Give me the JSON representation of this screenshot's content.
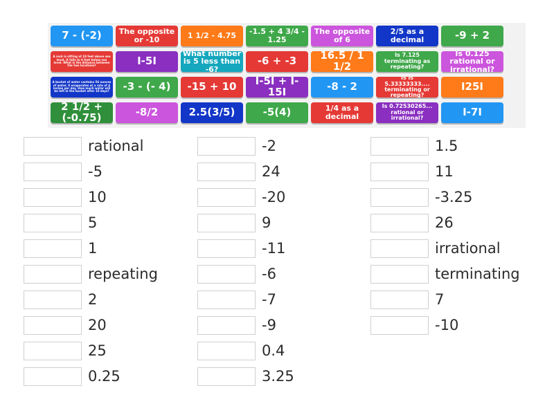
{
  "tiles": [
    {
      "text": "7 - (-2)",
      "color": "blue",
      "size": "big"
    },
    {
      "text": "The opposite or -10",
      "color": "red",
      "size": "mid"
    },
    {
      "text": "1 1/2 - 4.75",
      "color": "orange",
      "size": "mid"
    },
    {
      "text": "-1.5 + 4 3/4 - 1.25",
      "color": "green",
      "size": "mid"
    },
    {
      "text": "The opposite of 6",
      "color": "violet",
      "size": "mid"
    },
    {
      "text": "2/5 as a decimal",
      "color": "navy",
      "size": "mid"
    },
    {
      "text": "-9 + 2",
      "color": "green",
      "size": "big"
    },
    {
      "text": "A rock is sitting at 18 feet above sea level. It falls to 6 feet below sea level. What is the distance between the two locations?",
      "color": "red",
      "size": "tiny"
    },
    {
      "text": "I-5I",
      "color": "purple",
      "size": "big"
    },
    {
      "text": "What number is 5 less than -6?",
      "color": "teal",
      "size": "mid"
    },
    {
      "text": "-6 + -3",
      "color": "red",
      "size": "big"
    },
    {
      "text": "16.5 / 1 1/2",
      "color": "orange",
      "size": "big"
    },
    {
      "text": "Is 7.125 terminating as repeating?",
      "color": "green",
      "size": "sml"
    },
    {
      "text": "Is 0.125 rational or irrational?",
      "color": "violet",
      "size": "mid"
    },
    {
      "text": "A bucket of water contains 56 ounces of water. It evaporates at a rate of 4 inches per day. How much water will be left in the bucket after 10 days?",
      "color": "navy",
      "size": "tiny"
    },
    {
      "text": "-3 - (- 4)",
      "color": "green",
      "size": "big"
    },
    {
      "text": "-15 + 10",
      "color": "red",
      "size": "big"
    },
    {
      "text": "I-5I + I-15I",
      "color": "purple",
      "size": "big"
    },
    {
      "text": "-8 - 2",
      "color": "blue",
      "size": "big"
    },
    {
      "text": "Is is 5.33333333.... terminating or repeating?",
      "color": "red",
      "size": "sml"
    },
    {
      "text": "I25I",
      "color": "orange",
      "size": "big"
    },
    {
      "text": "2 1/2 + (-0.75)",
      "color": "darkgreen",
      "size": "big"
    },
    {
      "text": "-8/2",
      "color": "violet",
      "size": "big"
    },
    {
      "text": "2.5(3/5)",
      "color": "navy",
      "size": "big"
    },
    {
      "text": "-5(4)",
      "color": "green",
      "size": "big"
    },
    {
      "text": "1/4 as a decimal",
      "color": "red",
      "size": "mid"
    },
    {
      "text": "Is 0.72530265... rational or irrational?",
      "color": "purple",
      "size": "sml"
    },
    {
      "text": "I-7I",
      "color": "blue",
      "size": "big"
    }
  ],
  "answers": [
    {
      "label": "rational"
    },
    {
      "label": "-5"
    },
    {
      "label": "10"
    },
    {
      "label": "5"
    },
    {
      "label": "1"
    },
    {
      "label": "repeating"
    },
    {
      "label": "2"
    },
    {
      "label": "20"
    },
    {
      "label": "25"
    },
    {
      "label": "0.25"
    },
    {
      "label": "-2"
    },
    {
      "label": "24"
    },
    {
      "label": "-20"
    },
    {
      "label": "9"
    },
    {
      "label": "-11"
    },
    {
      "label": "-6"
    },
    {
      "label": "-7"
    },
    {
      "label": "-9"
    },
    {
      "label": "0.4"
    },
    {
      "label": "3.25"
    },
    {
      "label": "1.5"
    },
    {
      "label": "11"
    },
    {
      "label": "-3.25"
    },
    {
      "label": "26"
    },
    {
      "label": "irrational"
    },
    {
      "label": "terminating"
    },
    {
      "label": "7"
    },
    {
      "label": "-10"
    }
  ],
  "colors": {
    "blue": "#2196f3",
    "red": "#e53935",
    "orange": "#ff7a18",
    "green": "#3fa84a",
    "violet": "#cc55dd",
    "navy": "#1236c8",
    "purple": "#8a2fc0",
    "teal": "#15a7bd",
    "darkgreen": "#2f8f3a"
  }
}
